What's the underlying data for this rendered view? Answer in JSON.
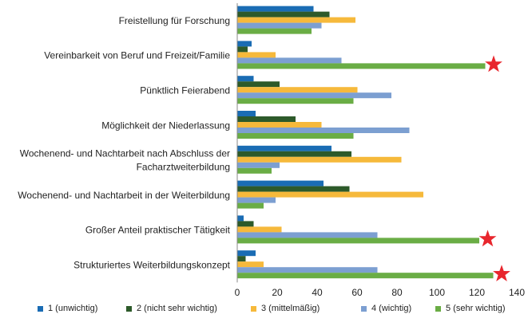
{
  "chart_data": {
    "type": "bar",
    "orientation": "horizontal",
    "title": "",
    "xlabel": "",
    "ylabel": "",
    "xlim": [
      0,
      140
    ],
    "x_ticks": [
      "0",
      "20",
      "40",
      "60",
      "80",
      "100",
      "120",
      "140"
    ],
    "grid": false,
    "legend_position": "bottom",
    "categories": [
      [
        "Freistellung für Forschung"
      ],
      [
        "Vereinbarkeit von Beruf und Freizeit/Familie"
      ],
      [
        "Pünktlich Feierabend"
      ],
      [
        "Möglichkeit der Niederlassung"
      ],
      [
        "Wochenend- und Nachtarbeit nach Abschluss der",
        "Facharztweiterbildung"
      ],
      [
        "Wochenend-  und Nachtarbeit in der Weiterbildung"
      ],
      [
        "Großer Anteil praktischer Tätigkeit"
      ],
      [
        "Strukturiertes Weiterbildungskonzept"
      ]
    ],
    "series": [
      {
        "name": "1 (unwichtig)",
        "color": "#1a6cb4",
        "values": [
          38,
          7,
          8,
          9,
          47,
          43,
          3,
          9
        ]
      },
      {
        "name": "2 (nicht sehr wichtig)",
        "color": "#2d5a2a",
        "values": [
          46,
          5,
          21,
          29,
          57,
          56,
          8,
          4
        ]
      },
      {
        "name": "3 (mittelmäßig)",
        "color": "#f6b93b",
        "values": [
          59,
          19,
          60,
          42,
          82,
          93,
          22,
          13
        ]
      },
      {
        "name": "4 (wichtig)",
        "color": "#7c9fd1",
        "values": [
          42,
          52,
          77,
          86,
          21,
          19,
          70,
          70
        ]
      },
      {
        "name": "5 (sehr wichtig)",
        "color": "#6aad45",
        "values": [
          37,
          124,
          58,
          58,
          17,
          13,
          121,
          128
        ]
      }
    ],
    "highlight_markers": {
      "shape": "star",
      "color": "#e8262d",
      "categories_index": [
        1,
        6,
        7
      ]
    }
  }
}
